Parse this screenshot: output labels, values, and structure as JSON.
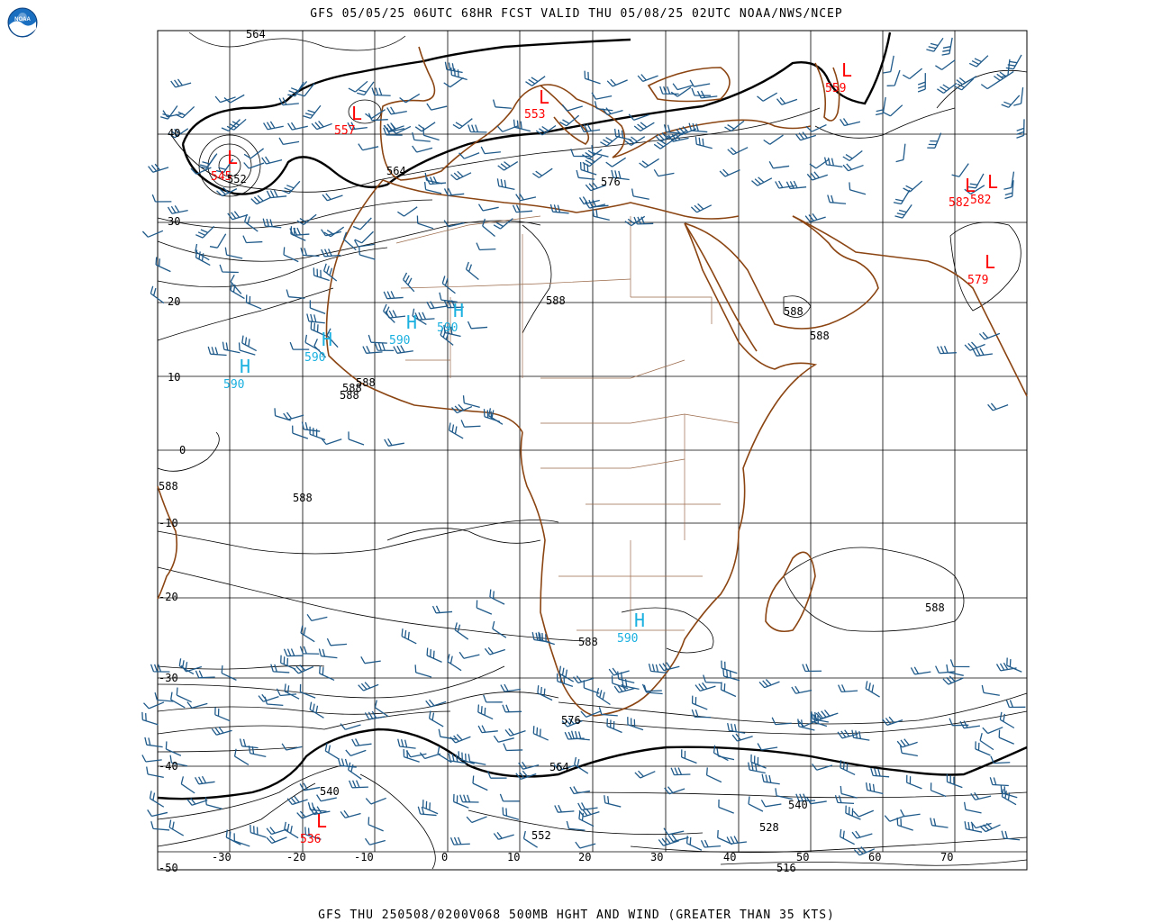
{
  "header": {
    "title": "GFS 05/05/25 06UTC 68HR FCST VALID THU 05/08/25 02UTC NOAA/NWS/NCEP",
    "logo_text": "NOAA"
  },
  "footer": {
    "title": "GFS THU 250508/0200V068 500MB HGHT AND WIND (GREATER THAN 35 KTS)"
  },
  "colors": {
    "grid": "#000000",
    "coast": "#8b4513",
    "border": "#9b6a4a",
    "wind": "#1f5a8a",
    "low": "#ff0000",
    "high": "#1ab0e0",
    "contour_label": "#000000"
  },
  "axes": {
    "lat_labels": [
      "40",
      "30",
      "20",
      "10",
      "0",
      "-10",
      "-20",
      "-30",
      "-40",
      "-50"
    ],
    "lon_labels": [
      "-30",
      "-20",
      "-10",
      "0",
      "10",
      "20",
      "30",
      "40",
      "50",
      "60",
      "70"
    ]
  },
  "centers": [
    {
      "type": "L",
      "value": "545"
    },
    {
      "type": "L",
      "value": "557"
    },
    {
      "type": "L",
      "value": "553"
    },
    {
      "type": "L",
      "value": "559"
    },
    {
      "type": "L",
      "value": "582"
    },
    {
      "type": "L",
      "value": "582"
    },
    {
      "type": "L",
      "value": "579"
    },
    {
      "type": "L",
      "value": "536"
    },
    {
      "type": "H",
      "value": "590"
    },
    {
      "type": "H",
      "value": "590"
    },
    {
      "type": "H",
      "value": "590"
    },
    {
      "type": "H",
      "value": "590"
    },
    {
      "type": "H",
      "value": "590"
    }
  ],
  "contour_labels": [
    {
      "text": "564"
    },
    {
      "text": "564"
    },
    {
      "text": "576"
    },
    {
      "text": "588"
    },
    {
      "text": "588"
    },
    {
      "text": "588"
    },
    {
      "text": "588"
    },
    {
      "text": "588"
    },
    {
      "text": "588"
    },
    {
      "text": "588"
    },
    {
      "text": "588"
    },
    {
      "text": "588"
    },
    {
      "text": "588"
    },
    {
      "text": "576"
    },
    {
      "text": "564"
    },
    {
      "text": "540"
    },
    {
      "text": "552"
    },
    {
      "text": "540"
    },
    {
      "text": "528"
    },
    {
      "text": "516"
    },
    {
      "text": "552"
    }
  ]
}
